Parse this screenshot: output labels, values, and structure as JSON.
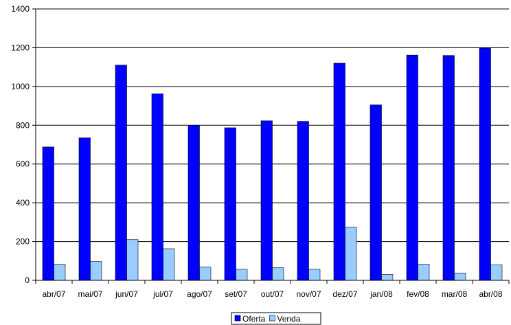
{
  "chart_data": {
    "type": "bar",
    "title": "",
    "xlabel": "",
    "ylabel": "",
    "categories": [
      "abr/07",
      "mai/07",
      "jun/07",
      "jul/07",
      "ago/07",
      "set/07",
      "out/07",
      "nov/07",
      "dez/07",
      "jan/08",
      "fev/08",
      "mar/08",
      "abr/08"
    ],
    "series": [
      {
        "name": "Oferta",
        "color": "#0000ff",
        "values": [
          688,
          735,
          1110,
          962,
          800,
          787,
          823,
          820,
          1120,
          905,
          1162,
          1160,
          1198
        ]
      },
      {
        "name": "Venda",
        "color": "#99ccff",
        "values": [
          83,
          97,
          210,
          163,
          68,
          57,
          65,
          57,
          275,
          30,
          83,
          38,
          80
        ]
      }
    ],
    "ylim": [
      0,
      1400
    ],
    "yticks": [
      0,
      200,
      400,
      600,
      800,
      1000,
      1200,
      1400
    ],
    "grid": true,
    "legend_position": "bottom"
  }
}
